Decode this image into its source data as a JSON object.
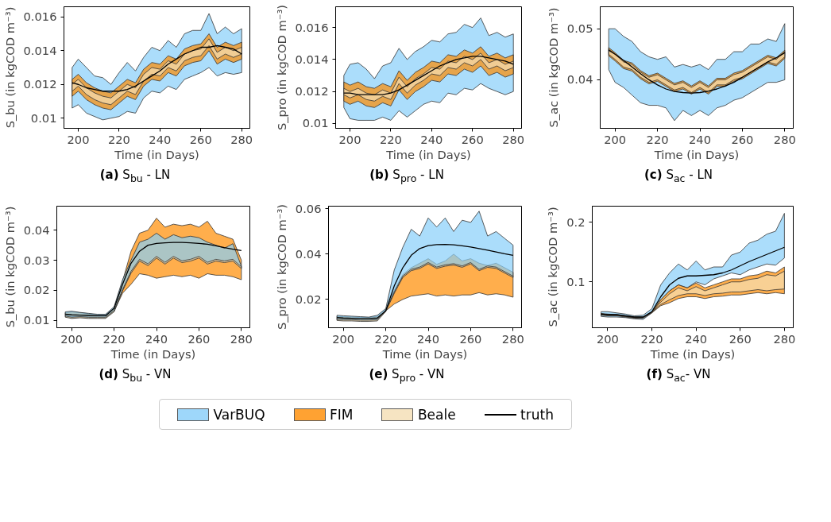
{
  "chart_data": [
    {
      "type": "line",
      "title": "(a) S$_{bu}$ - LN",
      "xlabel": "Time (in Days)",
      "ylabel": "S_bu (in kgCOD m⁻³)",
      "xlim": [
        193,
        284
      ],
      "xticks": [
        200,
        220,
        240,
        260,
        280
      ],
      "ylim": [
        0.0094,
        0.0166
      ],
      "yticks": [
        0.01,
        0.012,
        0.014,
        0.016
      ],
      "x": [
        197,
        200,
        204,
        208,
        212,
        216,
        220,
        224,
        228,
        232,
        236,
        240,
        244,
        248,
        252,
        256,
        260,
        264,
        268,
        272,
        276,
        280
      ],
      "series": [
        {
          "color": "#87cefa",
          "values": [
            null,
            null,
            null,
            null,
            null,
            null,
            null,
            null,
            null,
            null,
            null,
            null,
            null,
            null,
            null,
            null,
            null,
            null,
            null,
            null,
            null,
            null
          ],
          "upper": [
            0.013,
            0.0135,
            0.013,
            0.0125,
            0.0124,
            0.012,
            0.0127,
            0.0133,
            0.0128,
            0.0136,
            0.0142,
            0.014,
            0.0146,
            0.0142,
            0.015,
            0.0152,
            0.0152,
            0.0162,
            0.015,
            0.0154,
            0.015,
            0.0153
          ],
          "lower": [
            0.0106,
            0.0108,
            0.0103,
            0.0101,
            0.0099,
            0.01,
            0.0101,
            0.0104,
            0.0103,
            0.0112,
            0.0116,
            0.0115,
            0.0119,
            0.0117,
            0.0123,
            0.0125,
            0.0127,
            0.013,
            0.0125,
            0.0127,
            0.0126,
            0.0127
          ]
        },
        {
          "color": "#ff8c00",
          "values": [
            null,
            null,
            null,
            null,
            null,
            null,
            null,
            null,
            null,
            null,
            null,
            null,
            null,
            null,
            null,
            null,
            null,
            null,
            null,
            null,
            null,
            null
          ],
          "upper": [
            0.0123,
            0.0126,
            0.0121,
            0.0118,
            0.0116,
            0.0115,
            0.0119,
            0.0123,
            0.0121,
            0.0129,
            0.0133,
            0.0132,
            0.0137,
            0.0135,
            0.0141,
            0.0143,
            0.0144,
            0.015,
            0.0142,
            0.0145,
            0.0143,
            0.0145
          ],
          "lower": [
            0.0113,
            0.0116,
            0.0111,
            0.0108,
            0.0106,
            0.0105,
            0.0109,
            0.0113,
            0.0111,
            0.0119,
            0.0123,
            0.0122,
            0.0127,
            0.0125,
            0.0131,
            0.0133,
            0.0134,
            0.014,
            0.0132,
            0.0135,
            0.0133,
            0.0135
          ]
        },
        {
          "color": "#f5deb3",
          "values": [
            null,
            null,
            null,
            null,
            null,
            null,
            null,
            null,
            null,
            null,
            null,
            null,
            null,
            null,
            null,
            null,
            null,
            null,
            null,
            null,
            null,
            null
          ],
          "upper": [
            0.012,
            0.0123,
            0.0118,
            0.0115,
            0.0113,
            0.0112,
            0.0116,
            0.012,
            0.0118,
            0.0126,
            0.013,
            0.0129,
            0.0134,
            0.0132,
            0.0138,
            0.014,
            0.0141,
            0.0147,
            0.0139,
            0.0142,
            0.014,
            0.0142
          ],
          "lower": [
            0.0116,
            0.0119,
            0.0114,
            0.0111,
            0.0109,
            0.0108,
            0.0112,
            0.0116,
            0.0114,
            0.0122,
            0.0126,
            0.0125,
            0.013,
            0.0128,
            0.0134,
            0.0136,
            0.0137,
            0.0143,
            0.0135,
            0.0138,
            0.0136,
            0.0138
          ]
        },
        {
          "color": "#000000",
          "values": [
            0.0121,
            0.012,
            0.0118,
            0.0117,
            0.0116,
            0.0116,
            0.0116,
            0.0117,
            0.0119,
            0.0122,
            0.0125,
            0.0128,
            0.0132,
            0.0135,
            0.0138,
            0.014,
            0.0142,
            0.0142,
            0.0143,
            0.0142,
            0.0141,
            0.0138
          ]
        }
      ]
    },
    {
      "type": "line",
      "title": "(b) S$_{pro}$ - LN",
      "xlabel": "Time (in Days)",
      "ylabel": "S_pro (in kgCOD m⁻³)",
      "xlim": [
        193,
        284
      ],
      "xticks": [
        200,
        220,
        240,
        260,
        280
      ],
      "ylim": [
        0.0097,
        0.0173
      ],
      "yticks": [
        0.01,
        0.012,
        0.014,
        0.016
      ],
      "x": [
        197,
        200,
        204,
        208,
        212,
        216,
        220,
        224,
        228,
        232,
        236,
        240,
        244,
        248,
        252,
        256,
        260,
        264,
        268,
        272,
        276,
        280
      ],
      "series": [
        {
          "color": "#87cefa",
          "values": [
            null,
            null,
            null,
            null,
            null,
            null,
            null,
            null,
            null,
            null,
            null,
            null,
            null,
            null,
            null,
            null,
            null,
            null,
            null,
            null,
            null,
            null
          ],
          "upper": [
            0.013,
            0.0137,
            0.0138,
            0.0134,
            0.0128,
            0.0136,
            0.0138,
            0.0147,
            0.014,
            0.0145,
            0.0148,
            0.0152,
            0.0151,
            0.0156,
            0.0157,
            0.0162,
            0.016,
            0.0166,
            0.0155,
            0.0157,
            0.0154,
            0.0156
          ],
          "lower": [
            0.011,
            0.0103,
            0.0102,
            0.0102,
            0.0102,
            0.0104,
            0.0102,
            0.0108,
            0.0104,
            0.0108,
            0.0112,
            0.0114,
            0.0113,
            0.0119,
            0.0118,
            0.0122,
            0.0121,
            0.0125,
            0.0122,
            0.012,
            0.0118,
            0.012
          ]
        },
        {
          "color": "#ff8c00",
          "values": [
            null,
            null,
            null,
            null,
            null,
            null,
            null,
            null,
            null,
            null,
            null,
            null,
            null,
            null,
            null,
            null,
            null,
            null,
            null,
            null,
            null,
            null
          ],
          "upper": [
            0.0126,
            0.0124,
            0.0126,
            0.0123,
            0.0122,
            0.0125,
            0.0123,
            0.0133,
            0.0127,
            0.0132,
            0.0135,
            0.0139,
            0.0138,
            0.0143,
            0.0142,
            0.0146,
            0.0144,
            0.0148,
            0.0142,
            0.0144,
            0.0141,
            0.0143
          ],
          "lower": [
            0.0114,
            0.0112,
            0.0114,
            0.0111,
            0.011,
            0.0113,
            0.0111,
            0.0121,
            0.0115,
            0.012,
            0.0123,
            0.0127,
            0.0126,
            0.0131,
            0.013,
            0.0134,
            0.0132,
            0.0136,
            0.013,
            0.0132,
            0.0129,
            0.0131
          ]
        },
        {
          "color": "#f5deb3",
          "values": [
            null,
            null,
            null,
            null,
            null,
            null,
            null,
            null,
            null,
            null,
            null,
            null,
            null,
            null,
            null,
            null,
            null,
            null,
            null,
            null,
            null,
            null
          ],
          "upper": [
            0.0122,
            0.012,
            0.0122,
            0.0119,
            0.0118,
            0.0121,
            0.0119,
            0.0129,
            0.0123,
            0.0128,
            0.0131,
            0.0135,
            0.0134,
            0.0139,
            0.0138,
            0.0142,
            0.014,
            0.0144,
            0.0138,
            0.014,
            0.0137,
            0.0139
          ],
          "lower": [
            0.0118,
            0.0116,
            0.0118,
            0.0115,
            0.0114,
            0.0117,
            0.0115,
            0.0125,
            0.0119,
            0.0124,
            0.0127,
            0.0131,
            0.013,
            0.0135,
            0.0134,
            0.0138,
            0.0136,
            0.014,
            0.0134,
            0.0136,
            0.0133,
            0.0135
          ]
        },
        {
          "color": "#000000",
          "values": [
            0.0119,
            0.0119,
            0.0118,
            0.0118,
            0.0118,
            0.0118,
            0.0119,
            0.0121,
            0.0124,
            0.0127,
            0.013,
            0.0133,
            0.0136,
            0.0138,
            0.014,
            0.0141,
            0.0142,
            0.0142,
            0.0141,
            0.014,
            0.0139,
            0.0137
          ]
        }
      ]
    },
    {
      "type": "line",
      "title": "(c) S$_{ac}$ - LN",
      "xlabel": "Time (in Days)",
      "ylabel": "S_ac (in kgCOD m⁻³)",
      "xlim": [
        193,
        284
      ],
      "xticks": [
        200,
        220,
        240,
        260,
        280
      ],
      "ylim": [
        0.0305,
        0.0543
      ],
      "yticks": [
        0.04,
        0.05
      ],
      "x": [
        197,
        200,
        204,
        208,
        212,
        216,
        220,
        224,
        228,
        232,
        236,
        240,
        244,
        248,
        252,
        256,
        260,
        264,
        268,
        272,
        276,
        280
      ],
      "series": [
        {
          "color": "#87cefa",
          "values": [
            null,
            null,
            null,
            null,
            null,
            null,
            null,
            null,
            null,
            null,
            null,
            null,
            null,
            null,
            null,
            null,
            null,
            null,
            null,
            null,
            null,
            null
          ],
          "upper": [
            0.05,
            0.05,
            0.0485,
            0.0475,
            0.0455,
            0.0445,
            0.044,
            0.0445,
            0.0425,
            0.043,
            0.0425,
            0.043,
            0.042,
            0.044,
            0.044,
            0.0455,
            0.0455,
            0.047,
            0.047,
            0.048,
            0.0475,
            0.051
          ],
          "lower": [
            0.042,
            0.0395,
            0.0385,
            0.037,
            0.0355,
            0.035,
            0.035,
            0.0345,
            0.032,
            0.034,
            0.033,
            0.034,
            0.033,
            0.0345,
            0.035,
            0.036,
            0.0365,
            0.0375,
            0.0385,
            0.0395,
            0.0395,
            0.04
          ]
        },
        {
          "color": "#ff8c00",
          "values": [
            null,
            null,
            null,
            null,
            null,
            null,
            null,
            null,
            null,
            null,
            null,
            null,
            null,
            null,
            null,
            null,
            null,
            null,
            null,
            null,
            null,
            null
          ],
          "upper": [
            0.0463,
            0.0453,
            0.0438,
            0.0433,
            0.0418,
            0.0408,
            0.0413,
            0.0403,
            0.0393,
            0.0398,
            0.0388,
            0.0398,
            0.0388,
            0.0403,
            0.0403,
            0.0413,
            0.0418,
            0.0428,
            0.0438,
            0.0448,
            0.0443,
            0.0458
          ],
          "lower": [
            0.0447,
            0.0437,
            0.0422,
            0.0417,
            0.0402,
            0.0392,
            0.0397,
            0.0387,
            0.0377,
            0.0382,
            0.0372,
            0.0382,
            0.0372,
            0.0387,
            0.0387,
            0.0397,
            0.0402,
            0.0412,
            0.0422,
            0.0432,
            0.0427,
            0.0442
          ]
        },
        {
          "color": "#f5deb3",
          "values": [
            null,
            null,
            null,
            null,
            null,
            null,
            null,
            null,
            null,
            null,
            null,
            null,
            null,
            null,
            null,
            null,
            null,
            null,
            null,
            null,
            null,
            null
          ],
          "upper": [
            0.046,
            0.045,
            0.0435,
            0.043,
            0.0415,
            0.0405,
            0.041,
            0.04,
            0.039,
            0.0395,
            0.0385,
            0.0395,
            0.0385,
            0.04,
            0.04,
            0.041,
            0.0415,
            0.0425,
            0.0435,
            0.0445,
            0.044,
            0.0455
          ],
          "lower": [
            0.045,
            0.044,
            0.0425,
            0.042,
            0.0405,
            0.0395,
            0.04,
            0.039,
            0.038,
            0.0385,
            0.0375,
            0.0385,
            0.0375,
            0.039,
            0.039,
            0.04,
            0.0405,
            0.0415,
            0.0425,
            0.0435,
            0.043,
            0.0445
          ]
        },
        {
          "color": "#000000",
          "values": [
            0.0458,
            0.045,
            0.0438,
            0.0425,
            0.0412,
            0.04,
            0.039,
            0.0382,
            0.0377,
            0.0375,
            0.0374,
            0.0375,
            0.0378,
            0.0382,
            0.0388,
            0.0395,
            0.0405,
            0.0415,
            0.0425,
            0.0435,
            0.0443,
            0.0453
          ]
        }
      ]
    },
    {
      "type": "line",
      "title": "(d) S$_{bu}$ - VN",
      "xlabel": "Time (in Days)",
      "ylabel": "S_bu (in kgCOD m⁻³)",
      "xlim": [
        193,
        284
      ],
      "xticks": [
        200,
        220,
        240,
        260,
        280
      ],
      "ylim": [
        0.0075,
        0.048
      ],
      "yticks": [
        0.01,
        0.02,
        0.03,
        0.04
      ],
      "x": [
        197,
        200,
        204,
        208,
        212,
        216,
        220,
        224,
        228,
        232,
        236,
        240,
        244,
        248,
        252,
        256,
        260,
        264,
        268,
        272,
        276,
        280
      ],
      "series": [
        {
          "color": "#ff8c00",
          "values": [
            null,
            null,
            null,
            null,
            null,
            null,
            null,
            null,
            null,
            null,
            null,
            null,
            null,
            null,
            null,
            null,
            null,
            null,
            null,
            null,
            null,
            null
          ],
          "upper": [
            0.0125,
            0.0128,
            0.0125,
            0.0122,
            0.0118,
            0.0118,
            0.014,
            0.023,
            0.033,
            0.039,
            0.04,
            0.044,
            0.041,
            0.042,
            0.0415,
            0.042,
            0.041,
            0.043,
            0.039,
            0.038,
            0.037,
            0.03
          ],
          "lower": [
            0.0115,
            0.0112,
            0.0112,
            0.011,
            0.011,
            0.011,
            0.013,
            0.019,
            0.022,
            0.0255,
            0.025,
            0.024,
            0.0245,
            0.025,
            0.0245,
            0.025,
            0.024,
            0.0255,
            0.025,
            0.025,
            0.0245,
            0.0235
          ]
        },
        {
          "color": "#87cefa",
          "values": [
            null,
            null,
            null,
            null,
            null,
            null,
            null,
            null,
            null,
            null,
            null,
            null,
            null,
            null,
            null,
            null,
            null,
            null,
            null,
            null,
            null,
            null
          ],
          "upper": [
            0.0128,
            0.013,
            0.0126,
            0.0123,
            0.012,
            0.012,
            0.0145,
            0.0235,
            0.03,
            0.036,
            0.037,
            0.039,
            0.037,
            0.0385,
            0.0375,
            0.038,
            0.0375,
            0.036,
            0.035,
            0.034,
            0.0355,
            0.028
          ],
          "lower": [
            0.0112,
            0.0108,
            0.011,
            0.0108,
            0.0108,
            0.0108,
            0.013,
            0.02,
            0.026,
            0.03,
            0.0285,
            0.031,
            0.029,
            0.031,
            0.0295,
            0.03,
            0.031,
            0.029,
            0.03,
            0.0295,
            0.03,
            0.0275
          ]
        },
        {
          "color": "#f5deb3",
          "values": [
            null,
            null,
            null,
            null,
            null,
            null,
            null,
            null,
            null,
            null,
            null,
            null,
            null,
            null,
            null,
            null,
            null,
            null,
            null,
            null,
            null,
            null
          ],
          "upper": [
            0.0114,
            0.011,
            0.0112,
            0.011,
            0.011,
            0.011,
            0.0132,
            0.0202,
            0.0263,
            0.0303,
            0.0288,
            0.0313,
            0.0293,
            0.0313,
            0.0298,
            0.0303,
            0.0313,
            0.0293,
            0.0303,
            0.0298,
            0.0303,
            0.0278
          ],
          "lower": [
            0.011,
            0.0106,
            0.0108,
            0.0106,
            0.0106,
            0.0106,
            0.0128,
            0.0198,
            0.0257,
            0.0297,
            0.0282,
            0.0307,
            0.0287,
            0.0307,
            0.0292,
            0.0297,
            0.0307,
            0.0287,
            0.0297,
            0.0292,
            0.0297,
            0.0272
          ]
        },
        {
          "color": "#000000",
          "values": [
            0.012,
            0.0118,
            0.0117,
            0.0116,
            0.0115,
            0.0115,
            0.014,
            0.022,
            0.029,
            0.033,
            0.035,
            0.0356,
            0.0358,
            0.0359,
            0.0359,
            0.0358,
            0.0356,
            0.0353,
            0.0348,
            0.0342,
            0.0337,
            0.0332
          ]
        }
      ]
    },
    {
      "type": "line",
      "title": "(e) S$_{pro}$ - VN",
      "xlabel": "Time (in Days)",
      "ylabel": "S_pro (in kgCOD m⁻³)",
      "xlim": [
        193,
        284
      ],
      "xticks": [
        200,
        220,
        240,
        260,
        280
      ],
      "ylim": [
        0.0075,
        0.0612
      ],
      "yticks": [
        0.02,
        0.04,
        0.06
      ],
      "x": [
        197,
        200,
        204,
        208,
        212,
        216,
        220,
        224,
        228,
        232,
        236,
        240,
        244,
        248,
        252,
        256,
        260,
        264,
        268,
        272,
        276,
        280
      ],
      "series": [
        {
          "color": "#ff8c00",
          "values": [
            null,
            null,
            null,
            null,
            null,
            null,
            null,
            null,
            null,
            null,
            null,
            null,
            null,
            null,
            null,
            null,
            null,
            null,
            null,
            null,
            null,
            null
          ],
          "upper": [
            0.0125,
            0.0124,
            0.0122,
            0.012,
            0.012,
            0.0125,
            0.0155,
            0.024,
            0.031,
            0.034,
            0.036,
            0.038,
            0.0355,
            0.037,
            0.04,
            0.037,
            0.038,
            0.036,
            0.035,
            0.036,
            0.034,
            0.032
          ],
          "lower": [
            0.0112,
            0.011,
            0.011,
            0.0108,
            0.0108,
            0.0112,
            0.015,
            0.018,
            0.02,
            0.0215,
            0.022,
            0.0225,
            0.0215,
            0.022,
            0.0215,
            0.022,
            0.022,
            0.023,
            0.022,
            0.0225,
            0.022,
            0.021
          ]
        },
        {
          "color": "#87cefa",
          "values": [
            null,
            null,
            null,
            null,
            null,
            null,
            null,
            null,
            null,
            null,
            null,
            null,
            null,
            null,
            null,
            null,
            null,
            null,
            null,
            null,
            null,
            null
          ],
          "upper": [
            0.013,
            0.0128,
            0.0126,
            0.0124,
            0.0122,
            0.013,
            0.016,
            0.033,
            0.043,
            0.051,
            0.048,
            0.056,
            0.052,
            0.056,
            0.05,
            0.055,
            0.054,
            0.059,
            0.048,
            0.05,
            0.047,
            0.044
          ],
          "lower": [
            0.011,
            0.0108,
            0.0108,
            0.0106,
            0.0106,
            0.0108,
            0.015,
            0.023,
            0.03,
            0.033,
            0.034,
            0.036,
            0.034,
            0.035,
            0.0355,
            0.0345,
            0.036,
            0.033,
            0.0345,
            0.034,
            0.032,
            0.03
          ]
        },
        {
          "color": "#f5deb3",
          "values": [
            null,
            null,
            null,
            null,
            null,
            null,
            null,
            null,
            null,
            null,
            null,
            null,
            null,
            null,
            null,
            null,
            null,
            null,
            null,
            null,
            null,
            null
          ],
          "upper": [
            0.0113,
            0.0111,
            0.0111,
            0.0109,
            0.0109,
            0.0111,
            0.0153,
            0.0233,
            0.0303,
            0.0333,
            0.0343,
            0.0363,
            0.0343,
            0.0353,
            0.0358,
            0.0348,
            0.0363,
            0.0333,
            0.0348,
            0.0343,
            0.0323,
            0.0303
          ],
          "lower": [
            0.0107,
            0.0105,
            0.0105,
            0.0103,
            0.0103,
            0.0105,
            0.0147,
            0.0227,
            0.0297,
            0.0327,
            0.0337,
            0.0357,
            0.0337,
            0.0347,
            0.0352,
            0.0342,
            0.0357,
            0.0327,
            0.0342,
            0.0337,
            0.0317,
            0.0297
          ]
        },
        {
          "color": "#000000",
          "values": [
            0.012,
            0.0118,
            0.0117,
            0.0116,
            0.0116,
            0.0118,
            0.015,
            0.026,
            0.034,
            0.0395,
            0.0425,
            0.0438,
            0.0442,
            0.0443,
            0.0441,
            0.0437,
            0.0432,
            0.0425,
            0.0418,
            0.041,
            0.0402,
            0.0395
          ]
        }
      ]
    },
    {
      "type": "line",
      "title": "(f) S$_{ac}$- VN",
      "xlabel": "Time (in Days)",
      "ylabel": "S_ac (in kgCOD m⁻³)",
      "xlim": [
        193,
        284
      ],
      "xticks": [
        200,
        220,
        240,
        260,
        280
      ],
      "ylim": [
        0.023,
        0.227
      ],
      "yticks": [
        0.1,
        0.2
      ],
      "legend": "bottom",
      "x": [
        197,
        200,
        204,
        208,
        212,
        216,
        220,
        224,
        228,
        232,
        236,
        240,
        244,
        248,
        252,
        256,
        260,
        264,
        268,
        272,
        276,
        280
      ],
      "series": [
        {
          "name": "VarBUQ",
          "color": "#87cefa",
          "values": [
            null,
            null,
            null,
            null,
            null,
            null,
            null,
            null,
            null,
            null,
            null,
            null,
            null,
            null,
            null,
            null,
            null,
            null,
            null,
            null,
            null,
            null
          ],
          "upper": [
            0.05,
            0.05,
            0.048,
            0.046,
            0.043,
            0.044,
            0.055,
            0.095,
            0.115,
            0.13,
            0.12,
            0.135,
            0.12,
            0.125,
            0.125,
            0.145,
            0.15,
            0.165,
            0.17,
            0.18,
            0.185,
            0.215
          ],
          "lower": [
            0.042,
            0.041,
            0.041,
            0.04,
            0.038,
            0.037,
            0.048,
            0.07,
            0.085,
            0.095,
            0.09,
            0.1,
            0.095,
            0.105,
            0.11,
            0.115,
            0.112,
            0.12,
            0.125,
            0.13,
            0.128,
            0.14
          ]
        },
        {
          "name": "FIM",
          "color": "#ff8c00",
          "values": [
            null,
            null,
            null,
            null,
            null,
            null,
            null,
            null,
            null,
            null,
            null,
            null,
            null,
            null,
            null,
            null,
            null,
            null,
            null,
            null,
            null,
            null
          ],
          "upper": [
            0.047,
            0.046,
            0.045,
            0.043,
            0.041,
            0.041,
            0.05,
            0.07,
            0.085,
            0.095,
            0.09,
            0.098,
            0.09,
            0.095,
            0.1,
            0.105,
            0.105,
            0.11,
            0.112,
            0.118,
            0.115,
            0.125
          ],
          "lower": [
            0.044,
            0.043,
            0.043,
            0.041,
            0.039,
            0.039,
            0.048,
            0.06,
            0.065,
            0.072,
            0.075,
            0.075,
            0.072,
            0.075,
            0.076,
            0.078,
            0.078,
            0.08,
            0.082,
            0.08,
            0.082,
            0.08
          ]
        },
        {
          "name": "Beale",
          "color": "#f5deb3",
          "values": [
            null,
            null,
            null,
            null,
            null,
            null,
            null,
            null,
            null,
            null,
            null,
            null,
            null,
            null,
            null,
            null,
            null,
            null,
            null,
            null,
            null,
            null
          ],
          "upper": [
            0.046,
            0.045,
            0.044,
            0.042,
            0.04,
            0.04,
            0.049,
            0.066,
            0.08,
            0.09,
            0.085,
            0.092,
            0.085,
            0.09,
            0.095,
            0.1,
            0.1,
            0.104,
            0.106,
            0.112,
            0.11,
            0.118
          ],
          "lower": [
            0.045,
            0.044,
            0.044,
            0.042,
            0.04,
            0.04,
            0.049,
            0.062,
            0.07,
            0.077,
            0.08,
            0.08,
            0.077,
            0.08,
            0.081,
            0.083,
            0.083,
            0.085,
            0.087,
            0.085,
            0.087,
            0.088
          ]
        },
        {
          "name": "truth",
          "color": "#000000",
          "values": [
            0.046,
            0.045,
            0.045,
            0.043,
            0.041,
            0.041,
            0.05,
            0.075,
            0.095,
            0.106,
            0.11,
            0.11,
            0.111,
            0.112,
            0.115,
            0.12,
            0.127,
            0.134,
            0.14,
            0.146,
            0.152,
            0.158
          ]
        }
      ]
    }
  ]
}
